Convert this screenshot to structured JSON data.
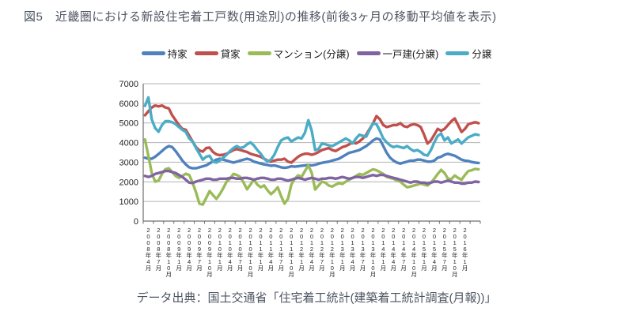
{
  "figure": {
    "title": "図5　近畿圏における新設住宅着工戸数(用途別)の推移(前後3ヶ月の移動平均値を表示)",
    "source": "データ出典：国土交通省「住宅着工統計(建築着工統計調査(月報))」"
  },
  "chart_data": {
    "type": "line",
    "title": "近畿圏における新設住宅着工戸数(用途別)の推移(前後3ヶ月の移動平均値を表示)",
    "x_start": "2008年4月",
    "x_frequency": "monthly",
    "ylim": [
      0,
      7000
    ],
    "y_ticks": [
      0,
      1000,
      2000,
      3000,
      4000,
      5000,
      6000,
      7000
    ],
    "grid": "horizontal",
    "legend_position": "top",
    "x_tick_labels": [
      "2008年4月",
      "2008年7月",
      "2008年10月",
      "2009年1月",
      "2009年4月",
      "2009年7月",
      "2009年10月",
      "2010年1月",
      "2010年4月",
      "2010年7月",
      "2010年10月",
      "2011年1月",
      "2011年4月",
      "2011年7月",
      "2011年10月",
      "2012年1月",
      "2012年4月",
      "2012年7月",
      "2012年10月",
      "2013年1月",
      "2013年4月",
      "2013年7月",
      "2013年10月",
      "2014年1月",
      "2014年4月",
      "2014年7月",
      "2014年10月",
      "2015年1月",
      "2015年4月",
      "2015年7月",
      "2015年10月",
      "2016年1月"
    ],
    "series": [
      {
        "name": "持家",
        "key": "mochiie",
        "color": "#4F81BD",
        "values": [
          3230,
          3180,
          3180,
          3280,
          3420,
          3570,
          3720,
          3820,
          3770,
          3570,
          3330,
          3080,
          2890,
          2740,
          2690,
          2690,
          2740,
          2790,
          2840,
          2940,
          3040,
          3130,
          3180,
          3130,
          3080,
          3030,
          2980,
          3030,
          3080,
          3130,
          3180,
          3130,
          3030,
          2980,
          2930,
          2890,
          2860,
          2820,
          2840,
          2790,
          2740,
          2710,
          2740,
          2790,
          2770,
          2790,
          2820,
          2840,
          2860,
          2840,
          2870,
          2920,
          2970,
          3000,
          3030,
          3080,
          3130,
          3180,
          3280,
          3380,
          3480,
          3520,
          3570,
          3620,
          3720,
          3820,
          3960,
          4110,
          4210,
          4160,
          3820,
          3480,
          3230,
          3080,
          2980,
          2930,
          2980,
          3030,
          3080,
          3080,
          3130,
          3130,
          3080,
          3030,
          3030,
          3080,
          3230,
          3280,
          3380,
          3430,
          3380,
          3330,
          3230,
          3130,
          3080,
          3060,
          3010,
          2980,
          2960
        ]
      },
      {
        "name": "貸家",
        "key": "kashiya",
        "color": "#C0504D",
        "values": [
          5390,
          5590,
          5790,
          5890,
          5840,
          5890,
          5790,
          5740,
          5390,
          5140,
          4890,
          4700,
          4650,
          4350,
          4060,
          3770,
          3600,
          3540,
          3720,
          3740,
          3520,
          3400,
          3360,
          3380,
          3430,
          3520,
          3620,
          3670,
          3620,
          3570,
          3520,
          3430,
          3380,
          3330,
          3280,
          3180,
          3080,
          3030,
          3080,
          3130,
          3130,
          3180,
          3030,
          2980,
          3130,
          3280,
          3380,
          3430,
          3430,
          3380,
          3430,
          3520,
          3620,
          3670,
          3720,
          3620,
          3570,
          3670,
          3770,
          3820,
          3910,
          4010,
          3960,
          4060,
          4210,
          4400,
          4700,
          4990,
          5350,
          5190,
          4890,
          4790,
          4840,
          4890,
          4890,
          4990,
          4840,
          4790,
          4890,
          4940,
          4890,
          4790,
          4400,
          3950,
          4110,
          4400,
          4700,
          4600,
          4700,
          4890,
          5090,
          5230,
          4890,
          4540,
          4700,
          4940,
          4990,
          5040,
          4990
        ]
      },
      {
        "name": "マンション(分譲)",
        "key": "mansion-bunjo",
        "color": "#9BBB59",
        "values": [
          4160,
          3330,
          2450,
          2010,
          2060,
          2400,
          2640,
          2690,
          2500,
          2300,
          2200,
          2300,
          2410,
          2350,
          1960,
          1470,
          890,
          840,
          1180,
          1530,
          1320,
          1130,
          1370,
          1670,
          2010,
          2160,
          2400,
          2350,
          2250,
          1960,
          1620,
          1860,
          2110,
          1860,
          1720,
          1820,
          1570,
          1370,
          1520,
          1720,
          1270,
          890,
          1130,
          1860,
          2160,
          2330,
          2250,
          2550,
          2840,
          2450,
          1610,
          1810,
          2010,
          1960,
          1810,
          1760,
          1860,
          1930,
          1890,
          2010,
          2110,
          2200,
          2300,
          2400,
          2350,
          2450,
          2550,
          2640,
          2590,
          2500,
          2400,
          2250,
          2200,
          2160,
          2060,
          2010,
          1860,
          1720,
          1760,
          1810,
          1860,
          1910,
          1860,
          1810,
          1960,
          2160,
          2400,
          2610,
          2450,
          2160,
          2140,
          2320,
          2200,
          2110,
          2350,
          2550,
          2590,
          2660,
          2640
        ]
      },
      {
        "name": "一戸建(分譲)",
        "key": "ikkodate-bunjo",
        "color": "#8064A2",
        "values": [
          2300,
          2250,
          2300,
          2400,
          2450,
          2500,
          2550,
          2550,
          2500,
          2450,
          2350,
          2250,
          2110,
          1960,
          1940,
          2010,
          2060,
          2110,
          2160,
          2160,
          2110,
          2110,
          2160,
          2160,
          2160,
          2200,
          2200,
          2160,
          2160,
          2200,
          2200,
          2160,
          2110,
          2160,
          2200,
          2200,
          2160,
          2110,
          2110,
          2160,
          2160,
          2110,
          2060,
          2110,
          2160,
          2200,
          2160,
          2110,
          2160,
          2200,
          2160,
          2110,
          2160,
          2160,
          2200,
          2200,
          2160,
          2200,
          2250,
          2200,
          2160,
          2200,
          2250,
          2250,
          2200,
          2250,
          2300,
          2350,
          2300,
          2350,
          2350,
          2300,
          2250,
          2200,
          2160,
          2110,
          2060,
          2010,
          1960,
          2010,
          2010,
          1960,
          1960,
          1910,
          1960,
          2010,
          2010,
          1960,
          2010,
          2060,
          2010,
          1960,
          1960,
          1910,
          1910,
          1960,
          1960,
          2010,
          1990
        ]
      },
      {
        "name": "分譲",
        "key": "bunjo",
        "color": "#4BACC6",
        "values": [
          5870,
          6300,
          5180,
          4740,
          4550,
          4890,
          5090,
          5090,
          5040,
          4940,
          4790,
          4650,
          4540,
          4210,
          4060,
          3720,
          3430,
          3130,
          3280,
          3330,
          3030,
          2980,
          3080,
          3230,
          3380,
          3570,
          3720,
          3820,
          3720,
          3770,
          3910,
          4010,
          3860,
          3620,
          3430,
          3180,
          3030,
          3130,
          3380,
          3770,
          4110,
          4210,
          4260,
          4060,
          4160,
          4260,
          4210,
          4500,
          5140,
          4600,
          3620,
          3670,
          3960,
          3910,
          3860,
          3820,
          3910,
          4010,
          4110,
          4210,
          4110,
          3960,
          4210,
          4400,
          4350,
          4300,
          4650,
          4990,
          4940,
          4600,
          4210,
          4010,
          3860,
          3770,
          3820,
          3770,
          3720,
          3820,
          3670,
          3570,
          3620,
          3520,
          3380,
          3340,
          3620,
          4010,
          4340,
          4460,
          4110,
          4260,
          3960,
          4060,
          4160,
          3950,
          4110,
          4270,
          4340,
          4420,
          4390
        ]
      }
    ]
  }
}
